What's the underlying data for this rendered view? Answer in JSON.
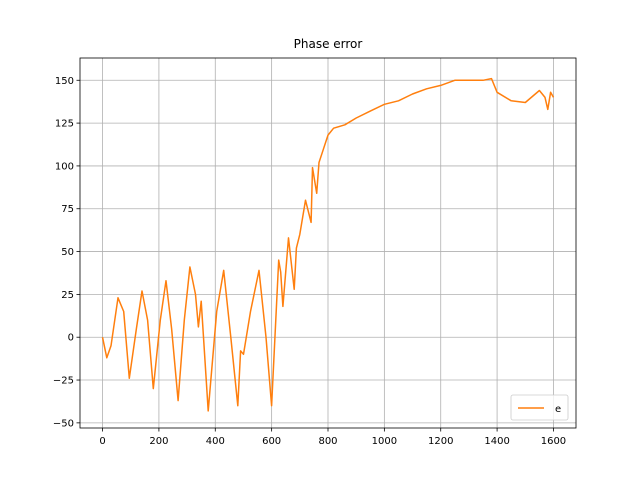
{
  "chart_data": {
    "type": "line",
    "title": "Phase error",
    "xlabel": "",
    "ylabel": "",
    "xlim": [
      -80,
      1680
    ],
    "ylim": [
      -53,
      163
    ],
    "xticks": [
      0,
      200,
      400,
      600,
      800,
      1000,
      1200,
      1400,
      1600
    ],
    "yticks": [
      -50,
      -25,
      0,
      25,
      50,
      75,
      100,
      125,
      150
    ],
    "xtick_labels": [
      "0",
      "200",
      "400",
      "600",
      "800",
      "1000",
      "1200",
      "1400",
      "1600"
    ],
    "ytick_labels": [
      "−50",
      "−25",
      "0",
      "25",
      "50",
      "75",
      "100",
      "125",
      "150"
    ],
    "grid": true,
    "legend": {
      "position": "lower-right",
      "entries": [
        "e"
      ]
    },
    "series": [
      {
        "name": "e",
        "color": "#ff7f0e",
        "x": [
          0,
          15,
          30,
          55,
          75,
          95,
          120,
          140,
          160,
          180,
          205,
          225,
          245,
          268,
          290,
          310,
          330,
          340,
          350,
          375,
          405,
          430,
          455,
          480,
          490,
          500,
          525,
          555,
          580,
          600,
          625,
          632,
          640,
          660,
          680,
          688,
          700,
          720,
          740,
          745,
          760,
          768,
          780,
          800,
          820,
          860,
          900,
          950,
          1000,
          1050,
          1100,
          1150,
          1200,
          1250,
          1300,
          1350,
          1380,
          1400,
          1450,
          1500,
          1550,
          1570,
          1580,
          1590,
          1600
        ],
        "y": [
          0,
          -12,
          -5,
          23,
          15,
          -24,
          5,
          27,
          10,
          -30,
          10,
          33,
          5,
          -37,
          10,
          41,
          25,
          6,
          21,
          -43,
          15,
          39,
          0,
          -40,
          -8,
          -10,
          15,
          39,
          0,
          -40,
          45,
          38,
          18,
          58,
          28,
          52,
          60,
          80,
          67,
          99,
          84,
          102,
          108,
          118,
          122,
          124,
          128,
          132,
          136,
          138,
          142,
          145,
          147,
          150,
          150,
          150,
          151,
          143,
          138,
          137,
          144,
          140,
          133,
          143,
          140
        ]
      }
    ]
  }
}
